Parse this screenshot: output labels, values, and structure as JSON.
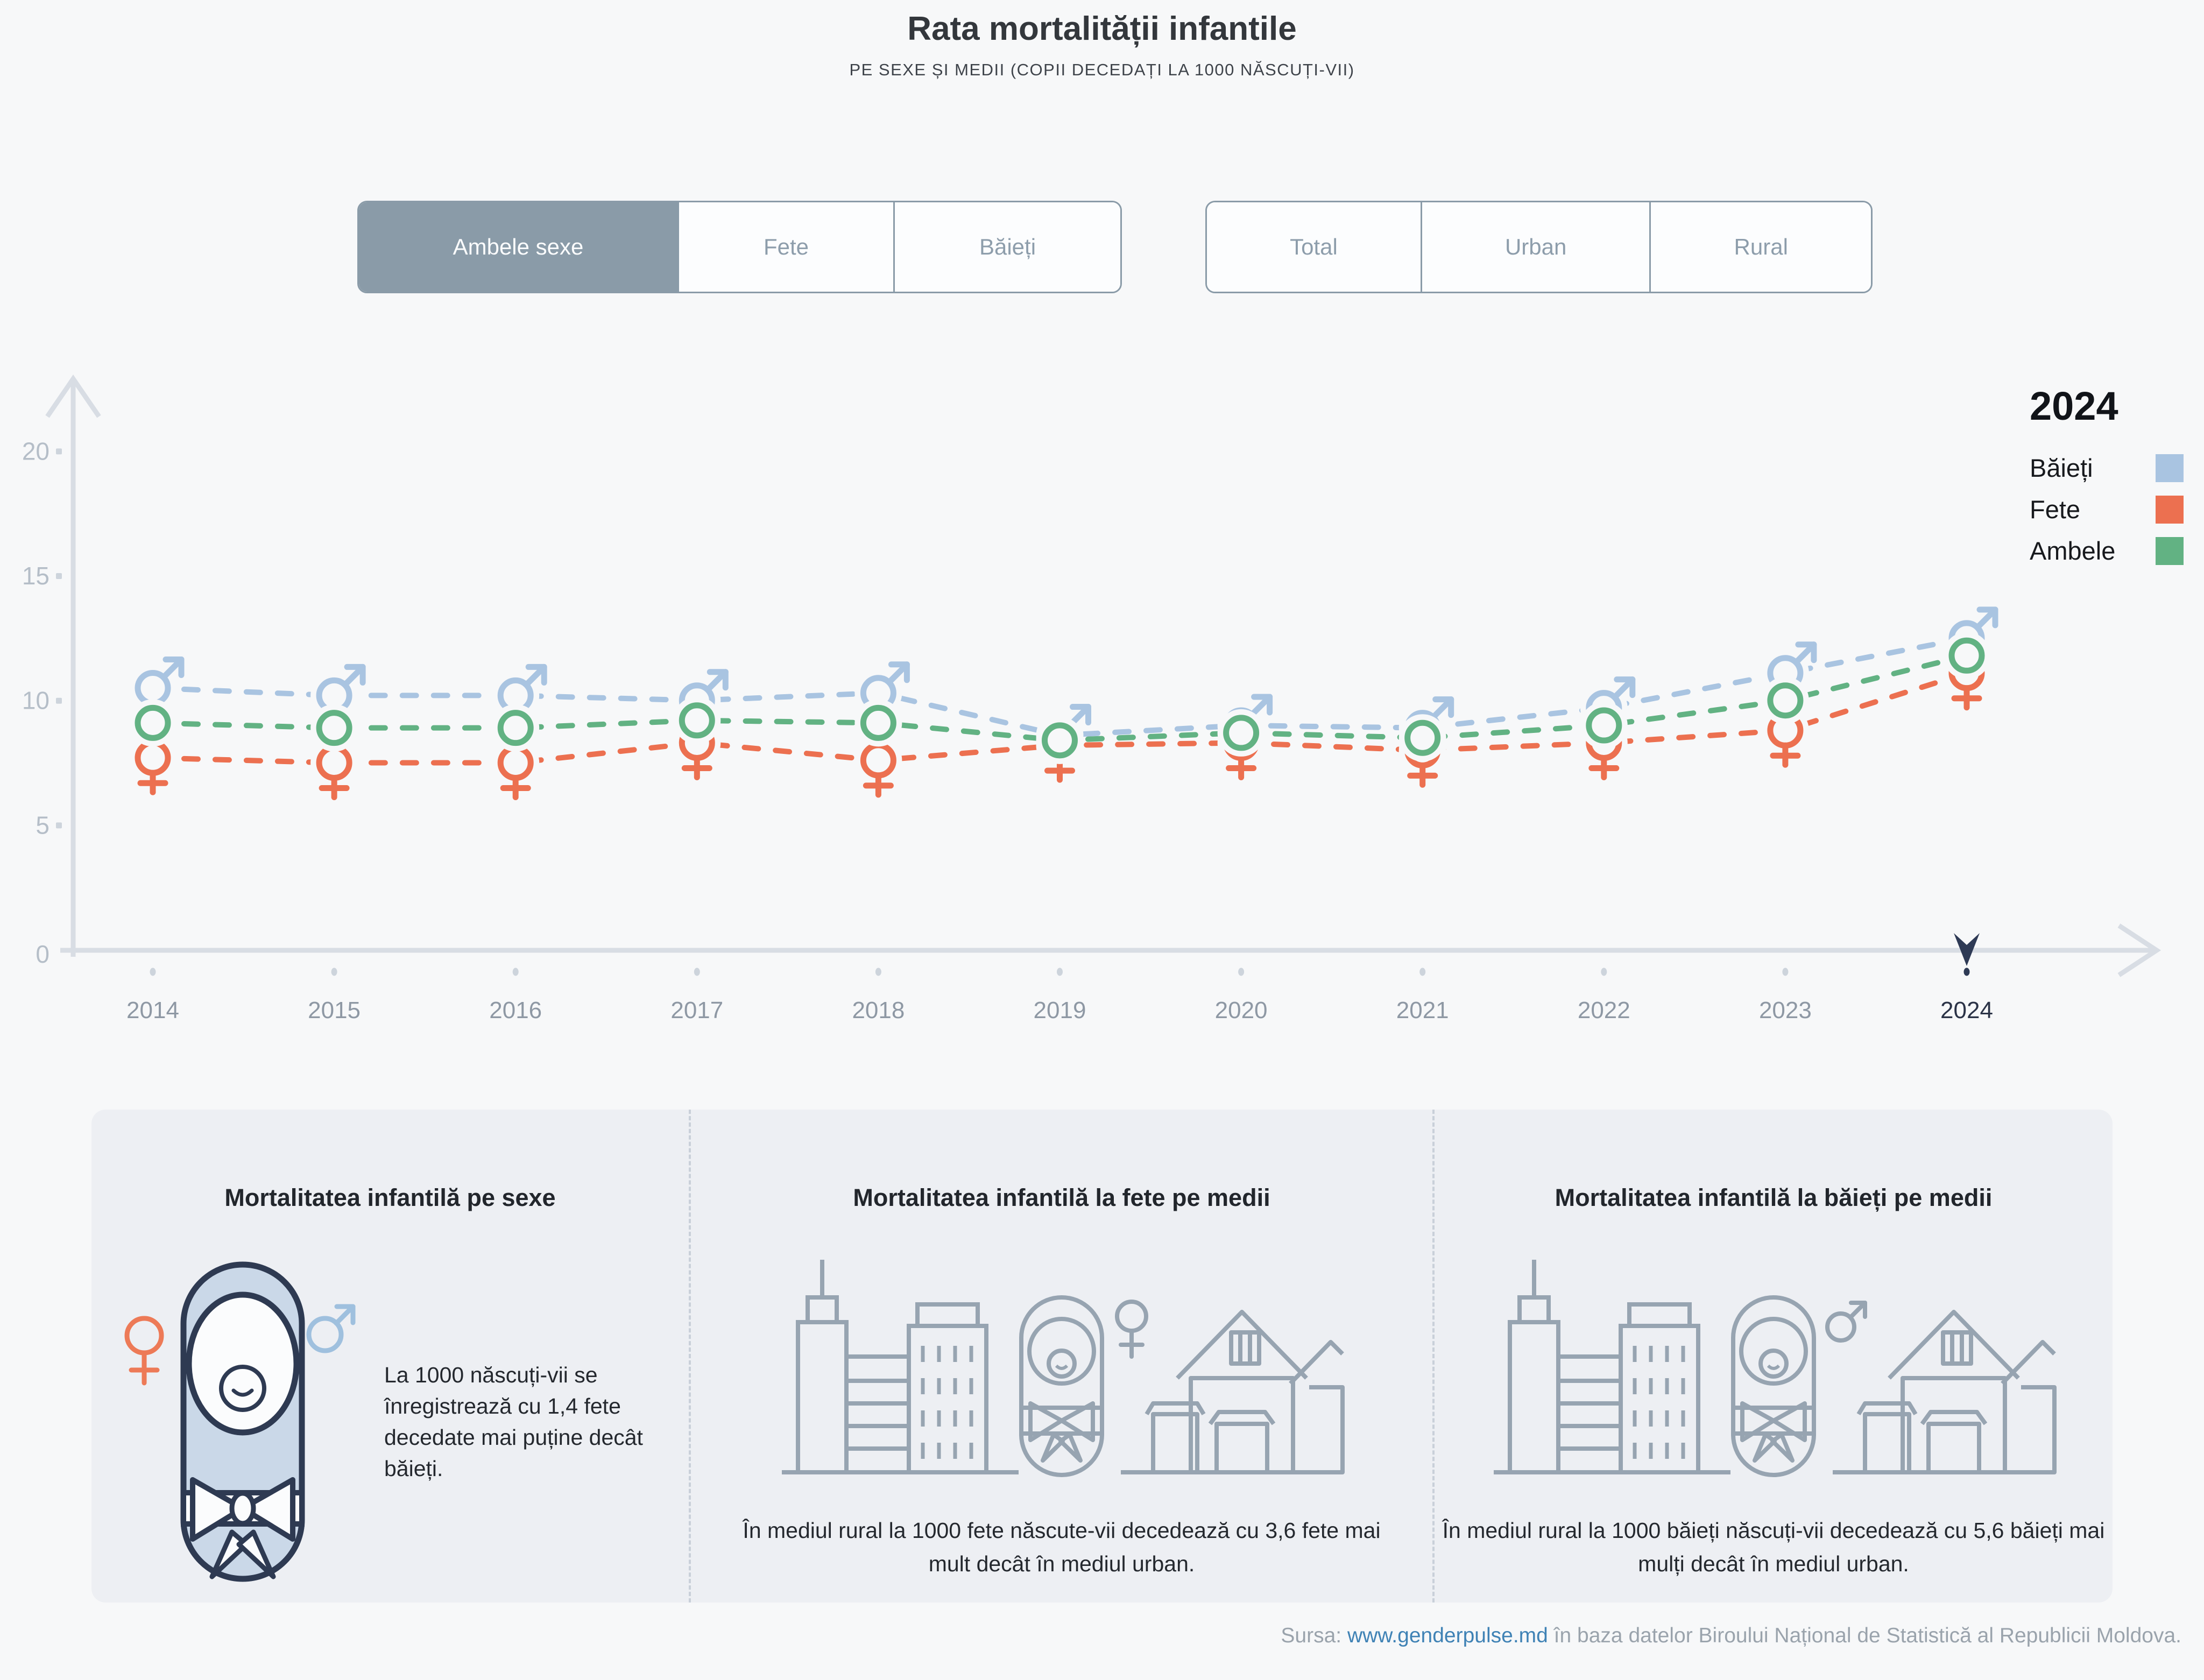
{
  "header": {
    "title": "Rata mortalității infantile",
    "subtitle": "PE SEXE ȘI MEDII (COPII DECEDAȚI LA 1000 NĂSCUȚI-VII)"
  },
  "filters": {
    "sex": {
      "options": [
        "Ambele sexe",
        "Fete",
        "Băieți"
      ],
      "selected_index": 0
    },
    "mediu": {
      "options": [
        "Total",
        "Urban",
        "Rural"
      ],
      "selected_index": -1
    }
  },
  "legend": {
    "year": "2024",
    "items": [
      {
        "label": "Băieți",
        "color": "#a9c4e1"
      },
      {
        "label": "Fete",
        "color": "#ec7050"
      },
      {
        "label": "Ambele",
        "color": "#62b283"
      }
    ]
  },
  "chart_data": {
    "type": "line",
    "x": [
      2014,
      2015,
      2016,
      2017,
      2018,
      2019,
      2020,
      2021,
      2022,
      2023,
      2024
    ],
    "series": [
      {
        "name": "Băieți",
        "color": "#a9c4e1",
        "marker": "male",
        "values": [
          10.5,
          10.2,
          10.2,
          10.0,
          10.3,
          8.6,
          9.0,
          8.9,
          9.7,
          11.1,
          12.5
        ]
      },
      {
        "name": "Fete",
        "color": "#ec7050",
        "marker": "female",
        "values": [
          7.7,
          7.5,
          7.5,
          8.3,
          7.6,
          8.2,
          8.3,
          8.0,
          8.3,
          8.8,
          11.1
        ]
      },
      {
        "name": "Ambele",
        "color": "#62b283",
        "marker": "circle",
        "values": [
          9.1,
          8.9,
          8.9,
          9.2,
          9.1,
          8.4,
          8.7,
          8.5,
          9.0,
          10.0,
          11.8
        ]
      }
    ],
    "yticks": [
      0,
      5,
      10,
      15,
      20
    ],
    "ylim": [
      0,
      22
    ],
    "grid": false,
    "legend_position": "top-right",
    "highlight_year": 2024,
    "title": "Rata mortalității infantile",
    "xlabel": "",
    "ylabel": ""
  },
  "cards": [
    {
      "title": "Mortalitatea infantilă pe sexe",
      "text": "La 1000 născuți-vii se înregistrează cu 1,4 fete decedate mai puține decât băieți."
    },
    {
      "title": "Mortalitatea infantilă la fete pe medii",
      "text": "În mediul rural la 1000 fete născute-vii decedează cu 3,6 fete mai mult decât în mediul urban."
    },
    {
      "title": "Mortalitatea infantilă la băieți pe medii",
      "text": "În mediul rural la 1000 băieți născuți-vii decedează cu 5,6 băieți mai mulți decât în mediul urban."
    }
  ],
  "footer": {
    "prefix": "Sursa: ",
    "link": "www.genderpulse.md",
    "suffix": " în baza datelor Biroului Național de Statistică al Republicii Moldova."
  },
  "colors": {
    "page_bg": "#f7f8f9",
    "card_bg": "#edeff3",
    "accent_slate": "#8a9ba8",
    "navy": "#2e3a55",
    "axis": "#d8dde4",
    "tick_label": "#b5bec8",
    "year_label": "#8e98a4"
  }
}
